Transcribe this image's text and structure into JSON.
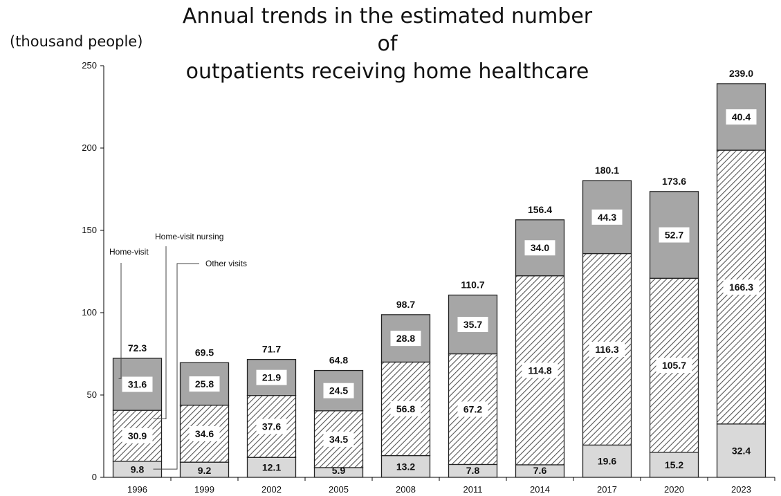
{
  "chart_data": {
    "type": "bar",
    "stacked": true,
    "title": "Annual trends in the estimated number of\noutpatients receiving home healthcare",
    "ylabel": "(thousand people)",
    "xlabel": "",
    "ylim": [
      0,
      250
    ],
    "yticks": [
      "0",
      "50",
      "100",
      "150",
      "200",
      "250"
    ],
    "grid": false,
    "categories": [
      "1996",
      "1999",
      "2002",
      "2005",
      "2008",
      "2011",
      "2014",
      "2017",
      "2020",
      "2023"
    ],
    "series": [
      {
        "name": "Other visits",
        "values": [
          9.8,
          9.2,
          12.1,
          5.9,
          13.2,
          7.8,
          7.6,
          19.6,
          15.2,
          32.4
        ],
        "labels": [
          "9.8",
          "9.2",
          "12.1",
          "5.9",
          "13.2",
          "7.8",
          "7.6",
          "19.6",
          "15.2",
          "32.4"
        ],
        "fill": "#d9d9d9",
        "pattern": "none"
      },
      {
        "name": "Home-visit nursing",
        "values": [
          30.9,
          34.6,
          37.6,
          34.5,
          56.8,
          67.2,
          114.8,
          116.3,
          105.7,
          166.3
        ],
        "labels": [
          "30.9",
          "34.6",
          "37.6",
          "34.5",
          "56.8",
          "67.2",
          "114.8",
          "116.3",
          "105.7",
          "166.3"
        ],
        "fill": "#ffffff",
        "pattern": "diagonal-hatch"
      },
      {
        "name": "Home-visit",
        "values": [
          31.6,
          25.8,
          21.9,
          24.5,
          28.8,
          35.7,
          34.0,
          44.3,
          52.7,
          40.4
        ],
        "labels": [
          "31.6",
          "25.8",
          "21.9",
          "24.5",
          "28.8",
          "35.7",
          "34.0",
          "44.3",
          "52.7",
          "40.4"
        ],
        "fill": "#a6a6a6",
        "pattern": "none"
      }
    ],
    "totals": [
      "72.3",
      "69.5",
      "71.7",
      "64.8",
      "98.7",
      "110.7",
      "156.4",
      "180.1",
      "173.6",
      "239.0"
    ],
    "annotations": [
      "Home-visit",
      "Home-visit nursing",
      "Other visits"
    ]
  }
}
